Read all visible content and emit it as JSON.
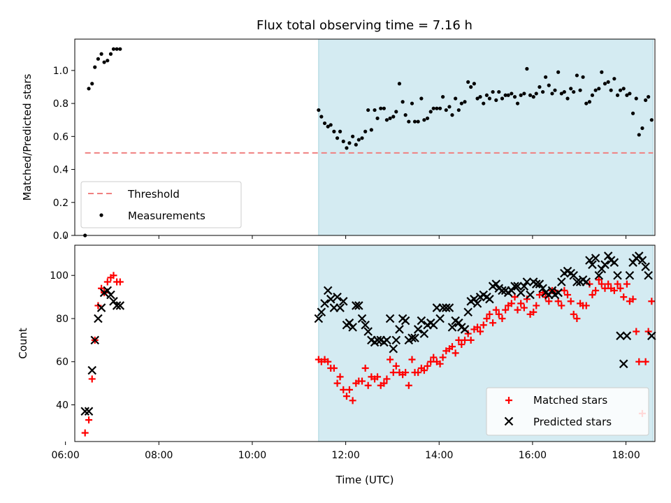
{
  "title": "Flux total observing time = 7.16 h",
  "colors": {
    "shade": "#d4ebf2",
    "shade_edge": "#a7d3de",
    "threshold": "#f08080",
    "measurement": "#000000",
    "matched": "#ff0000",
    "predicted": "#000000"
  },
  "chart_data": [
    {
      "type": "scatter",
      "name": "ratio-panel",
      "xlabel": "",
      "ylabel": "Matched/Predicted stars",
      "xlim": [
        6.2,
        18.62
      ],
      "ylim": [
        0,
        1.19
      ],
      "yticks": [
        0.0,
        0.2,
        0.4,
        0.6,
        0.8,
        1.0
      ],
      "ytick_labels": [
        "0.0",
        "0.2",
        "0.4",
        "0.6",
        "0.8",
        "1.0"
      ],
      "xticks": [
        6,
        8,
        10,
        12,
        14,
        16,
        18
      ],
      "shaded_span": [
        11.42,
        18.58
      ],
      "threshold": {
        "label": "Threshold",
        "y": 0.5,
        "x_range": [
          6.42,
          18.58
        ]
      },
      "legend": {
        "position": "lower-left",
        "entries": [
          "Threshold",
          "Measurements"
        ]
      },
      "series": [
        {
          "name": "Measurements",
          "marker": "dot",
          "x": [
            6.42,
            6.5,
            6.57,
            6.63,
            6.7,
            6.77,
            6.83,
            6.9,
            6.97,
            7.03,
            7.1,
            7.17,
            11.42,
            11.48,
            11.55,
            11.62,
            11.68,
            11.75,
            11.82,
            11.88,
            11.95,
            12.02,
            12.08,
            12.15,
            12.22,
            12.28,
            12.35,
            12.42,
            12.48,
            12.55,
            12.62,
            12.68,
            12.75,
            12.82,
            12.88,
            12.95,
            13.02,
            13.08,
            13.15,
            13.22,
            13.28,
            13.35,
            13.42,
            13.48,
            13.55,
            13.62,
            13.68,
            13.75,
            13.82,
            13.88,
            13.95,
            14.02,
            14.08,
            14.15,
            14.22,
            14.28,
            14.35,
            14.42,
            14.48,
            14.55,
            14.62,
            14.68,
            14.75,
            14.82,
            14.88,
            14.95,
            15.02,
            15.08,
            15.15,
            15.22,
            15.28,
            15.35,
            15.42,
            15.48,
            15.55,
            15.62,
            15.68,
            15.75,
            15.82,
            15.88,
            15.95,
            16.02,
            16.08,
            16.15,
            16.22,
            16.28,
            16.35,
            16.42,
            16.48,
            16.55,
            16.62,
            16.68,
            16.75,
            16.82,
            16.88,
            16.95,
            17.02,
            17.08,
            17.15,
            17.22,
            17.28,
            17.35,
            17.42,
            17.48,
            17.55,
            17.62,
            17.68,
            17.75,
            17.82,
            17.88,
            17.95,
            18.02,
            18.08,
            18.15,
            18.22,
            18.28,
            18.35,
            18.42,
            18.48,
            18.55
          ],
          "y": [
            0.0,
            0.89,
            0.92,
            1.02,
            1.07,
            1.1,
            1.05,
            1.06,
            1.1,
            1.13,
            1.13,
            1.13,
            0.76,
            0.72,
            0.68,
            0.66,
            0.67,
            0.63,
            0.59,
            0.63,
            0.57,
            0.53,
            0.56,
            0.6,
            0.55,
            0.58,
            0.59,
            0.63,
            0.76,
            0.64,
            0.76,
            0.71,
            0.77,
            0.77,
            0.7,
            0.71,
            0.72,
            0.75,
            0.92,
            0.81,
            0.73,
            0.69,
            0.8,
            0.69,
            0.69,
            0.83,
            0.7,
            0.71,
            0.75,
            0.77,
            0.77,
            0.77,
            0.84,
            0.76,
            0.78,
            0.73,
            0.83,
            0.76,
            0.8,
            0.81,
            0.93,
            0.9,
            0.92,
            0.83,
            0.84,
            0.8,
            0.85,
            0.83,
            0.87,
            0.82,
            0.87,
            0.83,
            0.85,
            0.85,
            0.86,
            0.84,
            0.8,
            0.85,
            0.86,
            1.01,
            0.85,
            0.84,
            0.86,
            0.9,
            0.87,
            0.96,
            0.91,
            0.86,
            0.88,
            0.99,
            0.86,
            0.87,
            0.83,
            0.89,
            0.87,
            0.97,
            0.88,
            0.96,
            0.8,
            0.81,
            0.85,
            0.88,
            0.89,
            0.99,
            0.92,
            0.93,
            0.88,
            0.95,
            0.85,
            0.88,
            0.89,
            0.85,
            0.86,
            0.74,
            0.83,
            0.61,
            0.65,
            0.82,
            0.84,
            0.7
          ]
        }
      ]
    },
    {
      "type": "scatter",
      "name": "count-panel",
      "xlabel": "Time (UTC)",
      "ylabel": "Count",
      "xlim": [
        6.2,
        18.62
      ],
      "ylim": [
        23,
        114
      ],
      "yticks": [
        40,
        60,
        80,
        100
      ],
      "ytick_labels": [
        "40",
        "60",
        "80",
        "100"
      ],
      "xticks": [
        6,
        8,
        10,
        12,
        14,
        16,
        18
      ],
      "xtick_labels": [
        "06:00",
        "08:00",
        "10:00",
        "12:00",
        "14:00",
        "16:00",
        "18:00"
      ],
      "shaded_span": [
        11.42,
        18.58
      ],
      "legend": {
        "position": "lower-right",
        "entries": [
          "Matched stars",
          "Predicted stars"
        ]
      },
      "series": [
        {
          "name": "Matched stars",
          "marker": "plus",
          "x": [
            6.42,
            6.5,
            6.57,
            6.63,
            6.7,
            6.77,
            6.83,
            6.9,
            6.97,
            7.03,
            7.1,
            7.17,
            11.42,
            11.48,
            11.55,
            11.62,
            11.68,
            11.75,
            11.82,
            11.88,
            11.95,
            12.02,
            12.08,
            12.15,
            12.22,
            12.28,
            12.35,
            12.42,
            12.48,
            12.55,
            12.62,
            12.68,
            12.75,
            12.82,
            12.88,
            12.95,
            13.02,
            13.08,
            13.15,
            13.22,
            13.28,
            13.35,
            13.42,
            13.48,
            13.55,
            13.62,
            13.68,
            13.75,
            13.82,
            13.88,
            13.95,
            14.02,
            14.08,
            14.15,
            14.22,
            14.28,
            14.35,
            14.42,
            14.48,
            14.55,
            14.62,
            14.68,
            14.75,
            14.82,
            14.88,
            14.95,
            15.02,
            15.08,
            15.15,
            15.22,
            15.28,
            15.35,
            15.42,
            15.48,
            15.55,
            15.62,
            15.68,
            15.75,
            15.82,
            15.88,
            15.95,
            16.02,
            16.08,
            16.15,
            16.22,
            16.28,
            16.35,
            16.42,
            16.48,
            16.55,
            16.62,
            16.68,
            16.75,
            16.82,
            16.88,
            16.95,
            17.02,
            17.08,
            17.15,
            17.22,
            17.28,
            17.35,
            17.42,
            17.48,
            17.55,
            17.62,
            17.68,
            17.75,
            17.82,
            17.88,
            17.95,
            18.02,
            18.08,
            18.15,
            18.22,
            18.28,
            18.35,
            18.42,
            18.48,
            18.55
          ],
          "y": [
            27,
            33,
            52,
            70,
            86,
            94,
            92,
            97,
            99,
            100,
            97,
            97,
            61,
            60,
            61,
            60,
            57,
            57,
            50,
            53,
            47,
            44,
            47,
            42,
            50,
            51,
            51,
            57,
            49,
            53,
            52,
            53,
            49,
            50,
            52,
            61,
            55,
            58,
            55,
            54,
            55,
            49,
            61,
            55,
            55,
            57,
            56,
            58,
            60,
            62,
            60,
            59,
            62,
            65,
            66,
            67,
            64,
            70,
            68,
            70,
            73,
            70,
            75,
            76,
            74,
            77,
            80,
            82,
            78,
            84,
            82,
            80,
            84,
            86,
            87,
            90,
            84,
            87,
            85,
            89,
            82,
            83,
            86,
            91,
            92,
            90,
            88,
            93,
            93,
            88,
            86,
            93,
            91,
            88,
            82,
            80,
            87,
            86,
            86,
            96,
            91,
            93,
            98,
            96,
            94,
            96,
            94,
            93,
            96,
            94,
            90,
            96,
            88,
            89,
            74,
            60,
            36,
            60,
            74,
            88
          ],
          "note_count_mismatch": false
        },
        {
          "name": "Predicted stars",
          "marker": "x",
          "x": [
            6.42,
            6.5,
            6.57,
            6.63,
            6.7,
            6.77,
            6.83,
            6.9,
            6.97,
            7.03,
            7.1,
            7.17,
            11.42,
            11.48,
            11.55,
            11.62,
            11.68,
            11.75,
            11.82,
            11.88,
            11.95,
            12.02,
            12.08,
            12.15,
            12.22,
            12.28,
            12.35,
            12.42,
            12.48,
            12.55,
            12.62,
            12.68,
            12.75,
            12.82,
            12.88,
            12.95,
            13.02,
            13.08,
            13.15,
            13.22,
            13.28,
            13.35,
            13.42,
            13.48,
            13.55,
            13.62,
            13.68,
            13.75,
            13.82,
            13.88,
            13.95,
            14.02,
            14.08,
            14.15,
            14.22,
            14.28,
            14.35,
            14.42,
            14.48,
            14.55,
            14.62,
            14.68,
            14.75,
            14.82,
            14.88,
            14.95,
            15.02,
            15.08,
            15.15,
            15.22,
            15.28,
            15.35,
            15.42,
            15.48,
            15.55,
            15.62,
            15.68,
            15.75,
            15.82,
            15.88,
            15.95,
            16.02,
            16.08,
            16.15,
            16.22,
            16.28,
            16.35,
            16.42,
            16.48,
            16.55,
            16.62,
            16.68,
            16.75,
            16.82,
            16.88,
            16.95,
            17.02,
            17.08,
            17.15,
            17.22,
            17.28,
            17.35,
            17.42,
            17.48,
            17.55,
            17.62,
            17.68,
            17.75,
            17.82,
            17.88,
            17.95,
            18.02,
            18.08,
            18.15,
            18.22,
            18.28,
            18.35,
            18.42,
            18.48,
            18.55
          ],
          "y": [
            37,
            37,
            56,
            70,
            80,
            85,
            92,
            93,
            91,
            88,
            86,
            86,
            80,
            83,
            87,
            93,
            89,
            85,
            90,
            85,
            88,
            77,
            78,
            76,
            86,
            86,
            80,
            77,
            74,
            70,
            69,
            70,
            70,
            69,
            70,
            80,
            66,
            70,
            75,
            80,
            79,
            70,
            71,
            71,
            75,
            79,
            73,
            77,
            78,
            77,
            85,
            80,
            85,
            85,
            85,
            76,
            79,
            78,
            76,
            75,
            83,
            88,
            89,
            87,
            90,
            91,
            90,
            89,
            95,
            96,
            94,
            93,
            93,
            92,
            93,
            95,
            95,
            92,
            95,
            97,
            91,
            97,
            96,
            96,
            94,
            92,
            91,
            93,
            91,
            92,
            97,
            101,
            102,
            101,
            100,
            97,
            97,
            98,
            97,
            107,
            105,
            108,
            100,
            103,
            105,
            109,
            107,
            106,
            100,
            72,
            59,
            72,
            100,
            106,
            108,
            109,
            107,
            104,
            100,
            72
          ],
          "note_count_mismatch": false
        }
      ]
    }
  ]
}
